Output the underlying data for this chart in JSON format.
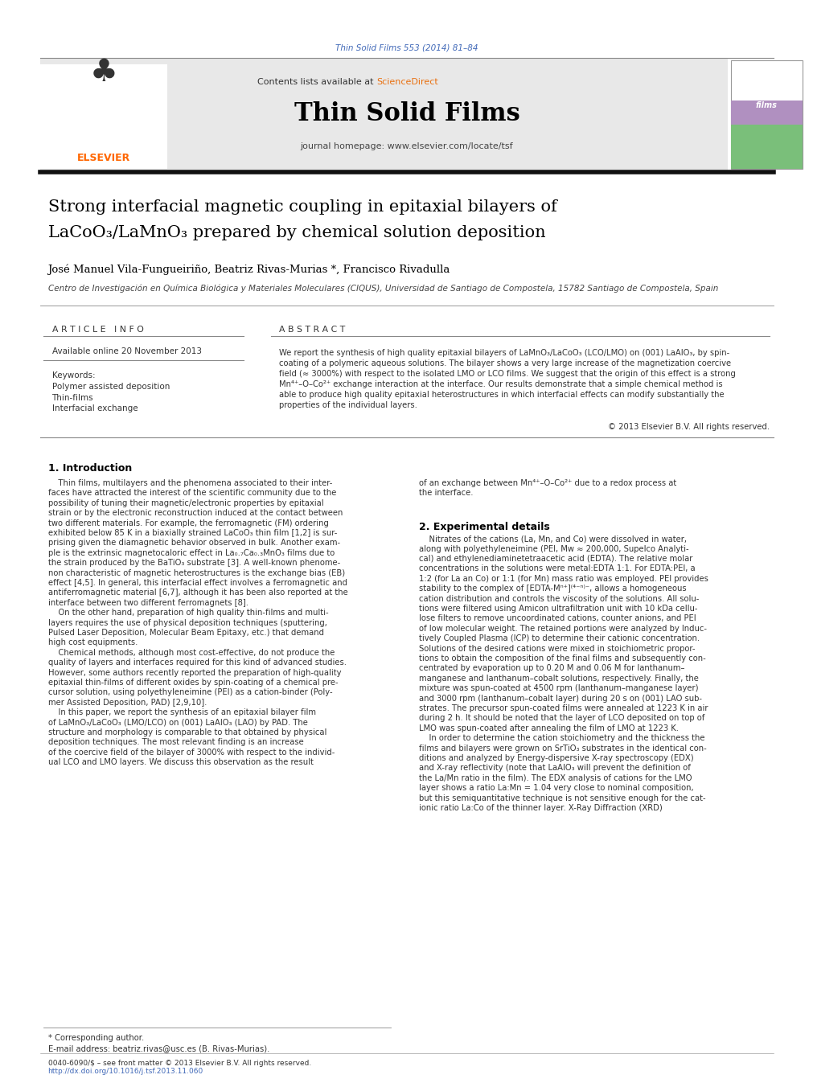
{
  "page_width": 9.92,
  "page_height": 13.23,
  "background_color": "#ffffff",
  "journal_ref": "Thin Solid Films 553 (2014) 81–84",
  "journal_ref_color": "#4169b8",
  "header_bg": "#e8e8e8",
  "header_text": "Contents lists available at ",
  "sciencedirect_text": "ScienceDirect",
  "sciencedirect_color": "#e87010",
  "journal_title": "Thin Solid Films",
  "journal_homepage": "journal homepage: www.elsevier.com/locate/tsf",
  "paper_title_line1": "Strong interfacial magnetic coupling in epitaxial bilayers of",
  "paper_title_line2": "LaCoO₃/LaMnO₃ prepared by chemical solution deposition",
  "authors": "José Manuel Vila-Fungueiriño, Beatriz Rivas-Murias *, Francisco Rivadulla",
  "affiliation": "Centro de Investigación en Química Biológica y Materiales Moleculares (CIQUS), Universidad de Santiago de Compostela, 15782 Santiago de Compostela, Spain",
  "article_info_header": "A R T I C L E   I N F O",
  "available_online": "Available online 20 November 2013",
  "keywords_header": "Keywords:",
  "keywords": [
    "Polymer assisted deposition",
    "Thin-films",
    "Interfacial exchange"
  ],
  "abstract_header": "A B S T R A C T",
  "copyright": "© 2013 Elsevier B.V. All rights reserved.",
  "section1_title": "1. Introduction",
  "section2_title": "2. Experimental details",
  "footnote_corresponding": "* Corresponding author.",
  "footnote_email": "E-mail address: beatriz.rivas@usc.es (B. Rivas-Murias).",
  "footer_line1": "0040-6090/$ – see front matter © 2013 Elsevier B.V. All rights reserved.",
  "footer_line2": "http://dx.doi.org/10.1016/j.tsf.2013.11.060",
  "elsevier_color": "#ff6600",
  "cover_bg_green": "#7abf7a",
  "cover_bg_purple": "#b090c0",
  "cover_bg_green2": "#90c896"
}
